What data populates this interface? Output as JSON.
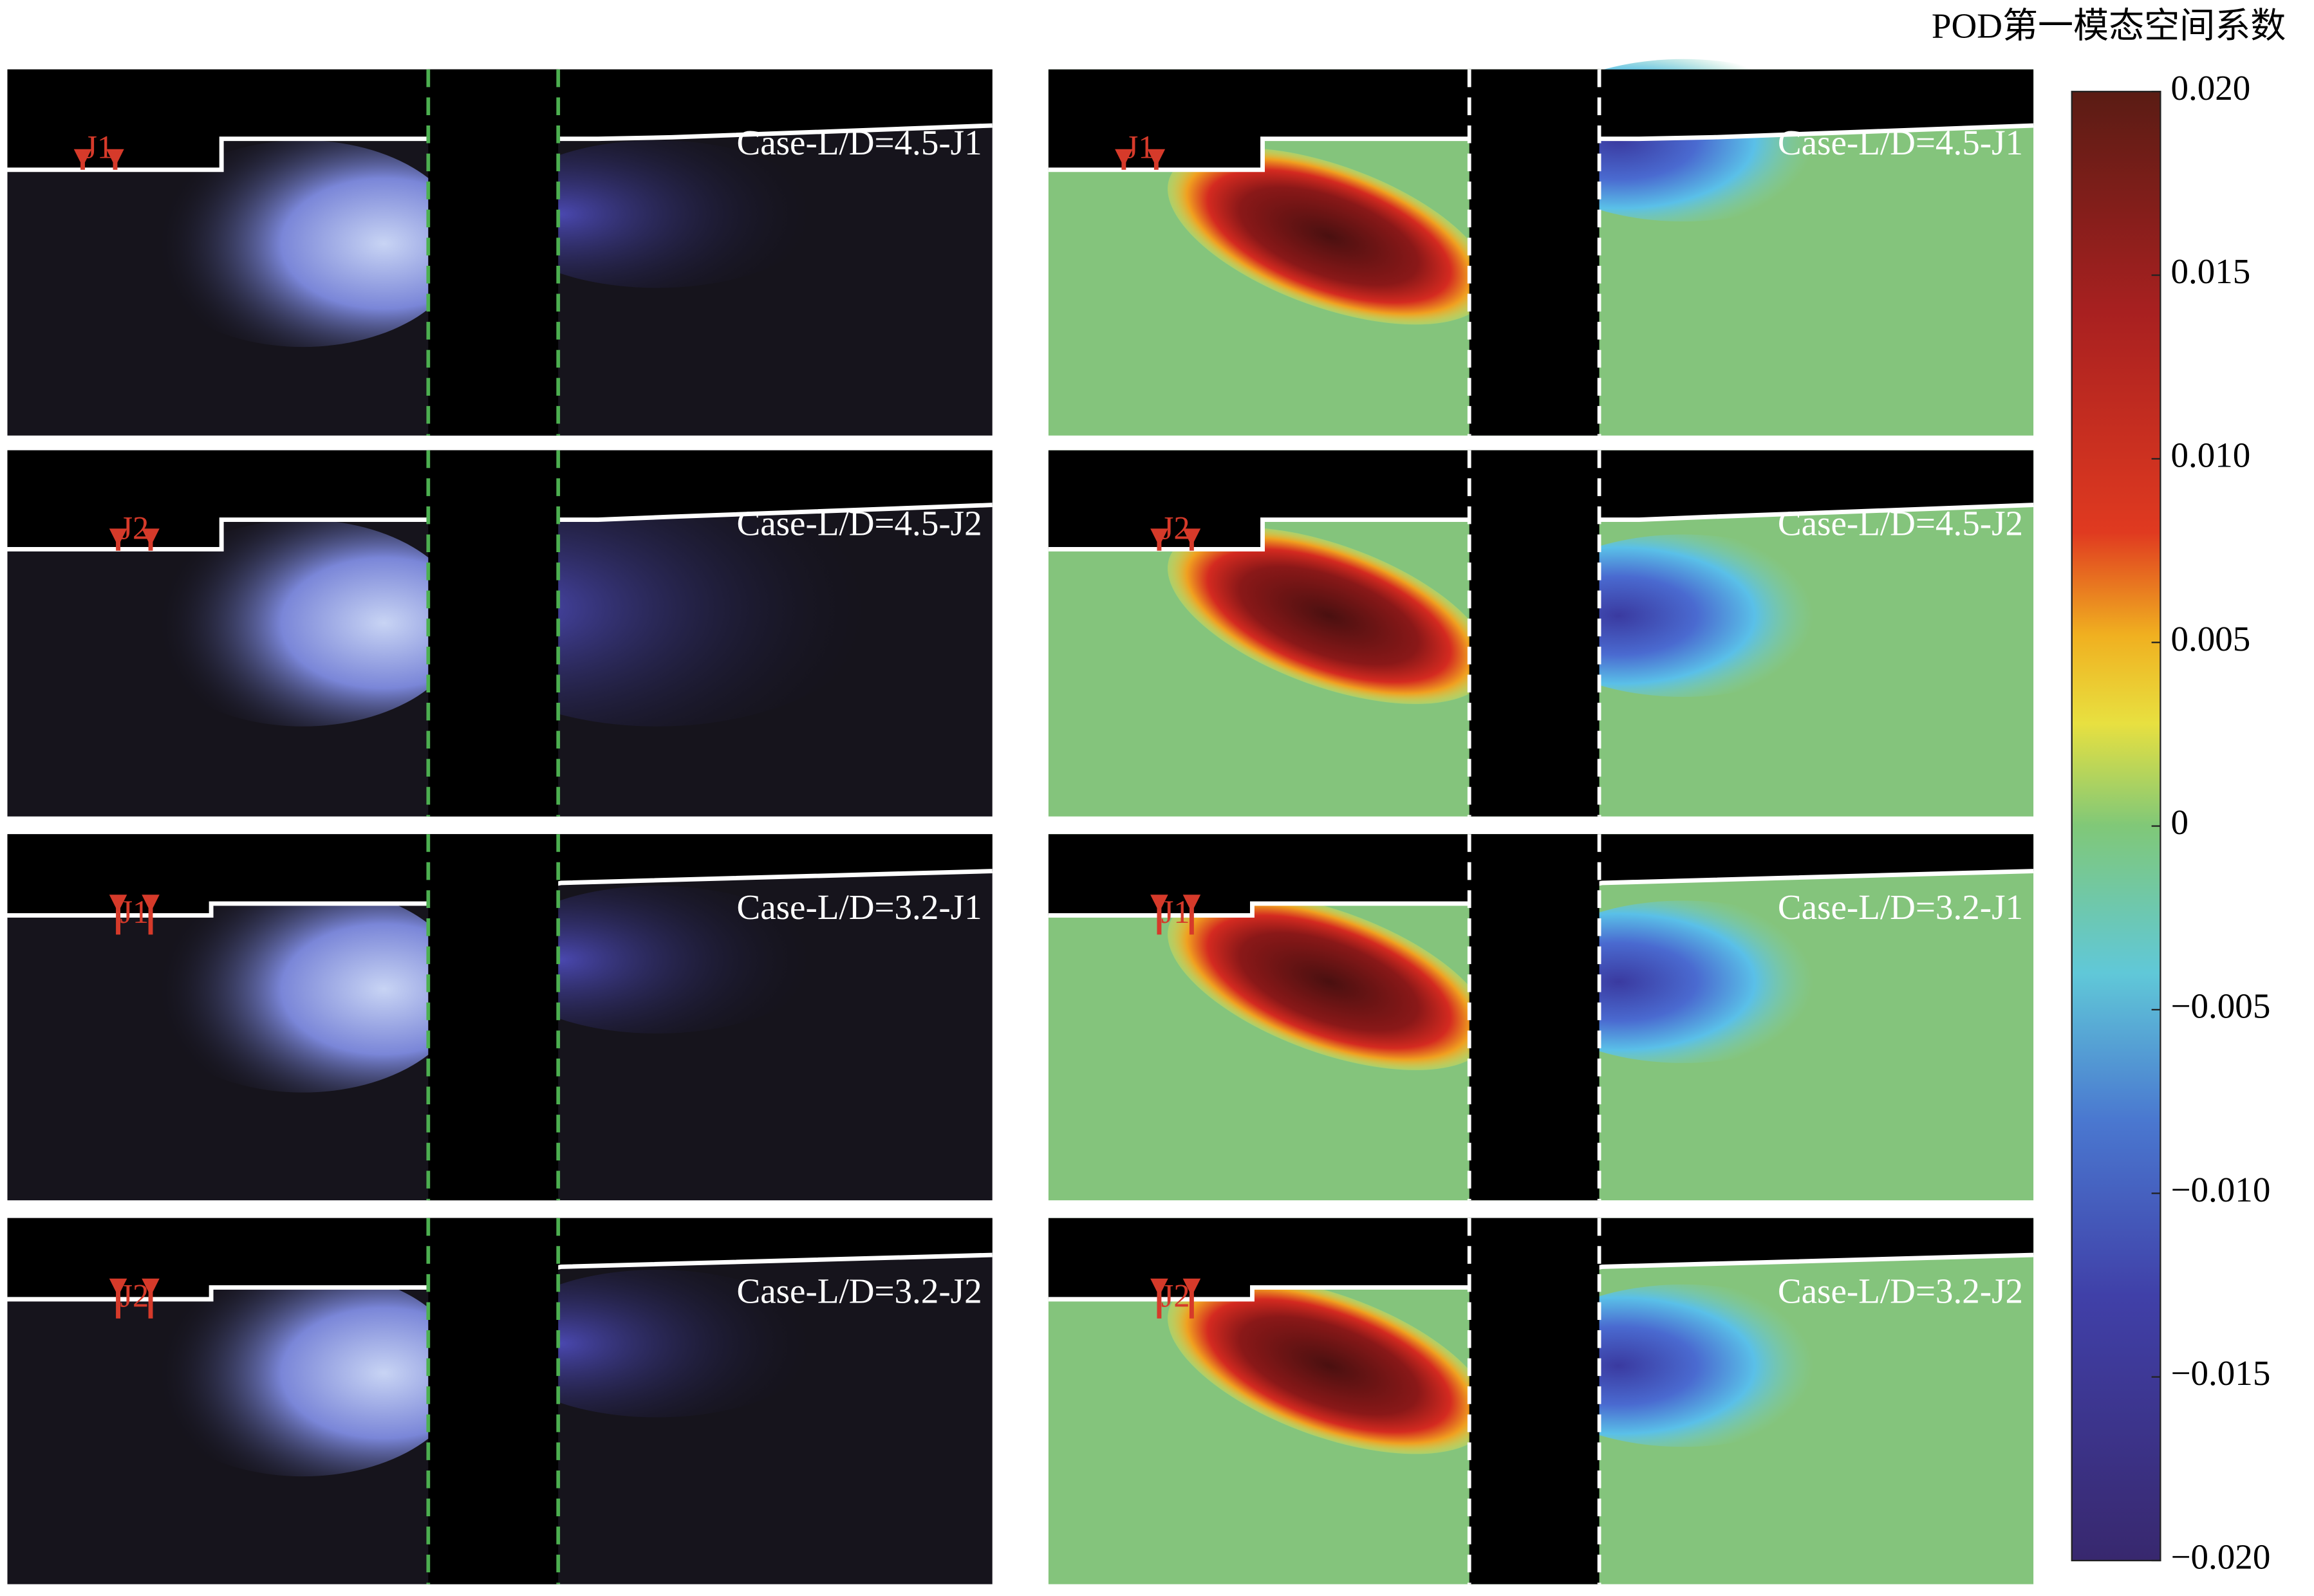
{
  "colorbar": {
    "title": "POD第一模态空间系数",
    "lim": [
      -0.02,
      0.02
    ],
    "ticks": [
      {
        "value": 0.02,
        "label": "0.020"
      },
      {
        "value": 0.015,
        "label": "0.015"
      },
      {
        "value": 0.01,
        "label": "0.010"
      },
      {
        "value": 0.005,
        "label": "0.005"
      },
      0,
      {
        "value": -0.005,
        "label": "−0.005"
      },
      {
        "value": -0.01,
        "label": "−0.010"
      },
      {
        "value": -0.015,
        "label": "−0.015"
      },
      {
        "value": -0.02,
        "label": "−0.020"
      }
    ]
  },
  "rows": [
    {
      "case": "Case-L/D=4.5-J1",
      "jet": "J1"
    },
    {
      "case": "Case-L/D=4.5-J2",
      "jet": "J2"
    },
    {
      "case": "Case-L/D=3.2-J1",
      "jet": "J1"
    },
    {
      "case": "Case-L/D=3.2-J2",
      "jet": "J2"
    }
  ]
}
